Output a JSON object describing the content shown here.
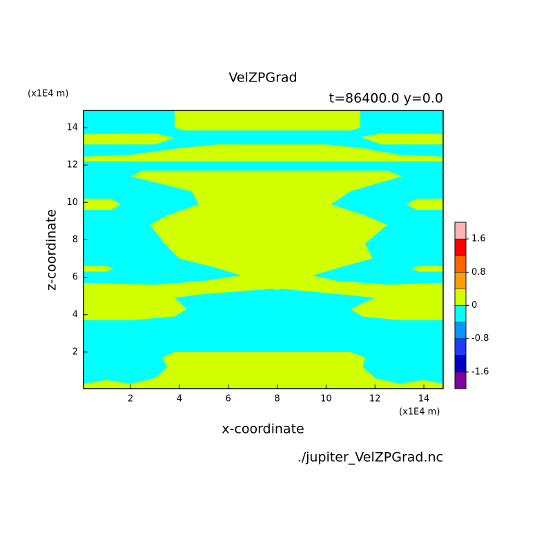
{
  "chart_data": {
    "type": "contour",
    "title": "VelZPGrad",
    "subtitle": "t=86400.0 y=0.0",
    "x_label": "x-coordinate",
    "y_label": "z-coordinate",
    "x_unit": "(x1E4 m)",
    "y_unit": "(x1E4 m)",
    "source": "./jupiter_VelZPGrad.nc",
    "xlim": [
      0.08,
      14.79
    ],
    "ylim": [
      0.04,
      14.92
    ],
    "xticks": [
      2,
      4,
      6,
      8,
      10,
      12,
      14
    ],
    "yticks": [
      2,
      4,
      6,
      8,
      10,
      12,
      14
    ],
    "levels": [
      -1.6,
      -1.2,
      -0.8,
      -0.4,
      0,
      0.4,
      0.8,
      1.2,
      1.6
    ],
    "colors": [
      "#8200a0",
      "#0000c8",
      "#1e3cff",
      "#0096ff",
      "#00ffff",
      "#d2ff00",
      "#ffa000",
      "#ff6400",
      "#ff0000",
      "#ffb4b4"
    ],
    "colorbar_ticks": [
      -1.6,
      -0.8,
      0,
      0.8,
      1.6
    ],
    "background_level": -0.4,
    "regions": [
      {
        "level": 0,
        "x": [
          3.8,
          3.8,
          4.2,
          11.0,
          11.4,
          11.4
        ],
        "y": [
          14.92,
          14.0,
          13.85,
          13.85,
          14.0,
          14.92
        ]
      },
      {
        "level": 0,
        "x": [
          0.08,
          3.0,
          3.8,
          3.0,
          0.08
        ],
        "y": [
          13.65,
          13.7,
          13.45,
          13.1,
          13.1
        ]
      },
      {
        "level": 0,
        "x": [
          14.79,
          12.3,
          11.4,
          12.3,
          14.79
        ],
        "y": [
          13.65,
          13.7,
          13.5,
          13.1,
          13.1
        ]
      },
      {
        "level": 0,
        "x": [
          0.08,
          2.0,
          4.0,
          5.5,
          10.0,
          11.5,
          13.0,
          14.79,
          14.79,
          0.08
        ],
        "y": [
          12.45,
          12.55,
          12.9,
          13.1,
          13.1,
          12.9,
          12.55,
          12.45,
          12.2,
          12.2
        ]
      },
      {
        "level": 0,
        "x": [
          2.0,
          2.5,
          12.5,
          13.1,
          11.0,
          10.2,
          11.6,
          12.5,
          11.6,
          11.9,
          10.5,
          9.2,
          8.0,
          6.8,
          5.5,
          4.0,
          3.4,
          2.8,
          3.5,
          4.8,
          4.5
        ],
        "y": [
          11.4,
          11.7,
          11.7,
          11.4,
          10.6,
          9.9,
          9.3,
          8.8,
          7.8,
          7.0,
          6.5,
          6.0,
          5.3,
          6.0,
          6.5,
          7.0,
          7.8,
          8.8,
          9.3,
          9.9,
          10.6
        ]
      },
      {
        "level": 0,
        "x": [
          0.08,
          1.2,
          1.6,
          1.2,
          0.08
        ],
        "y": [
          10.2,
          10.2,
          9.9,
          9.6,
          9.6
        ]
      },
      {
        "level": 0,
        "x": [
          14.79,
          13.7,
          13.3,
          13.7,
          14.79
        ],
        "y": [
          10.2,
          10.2,
          9.9,
          9.6,
          9.6
        ]
      },
      {
        "level": 0,
        "x": [
          0.08,
          1.0,
          1.3,
          1.0,
          0.08
        ],
        "y": [
          6.6,
          6.6,
          6.45,
          6.3,
          6.3
        ]
      },
      {
        "level": 0,
        "x": [
          14.79,
          13.8,
          13.5,
          13.8,
          14.79
        ],
        "y": [
          6.6,
          6.6,
          6.45,
          6.3,
          6.3
        ]
      },
      {
        "level": 0,
        "x": [
          0.08,
          3.0,
          5.0,
          7.0,
          9.0,
          10.5,
          12.5,
          14.79,
          14.79,
          13.0,
          11.5,
          11.0,
          12.0,
          10.5,
          8.0,
          5.0,
          3.8,
          4.3,
          3.8,
          2.0,
          0.08
        ],
        "y": [
          5.7,
          5.6,
          5.8,
          6.2,
          6.2,
          5.8,
          5.6,
          5.7,
          3.7,
          3.7,
          3.9,
          4.3,
          4.9,
          5.1,
          5.4,
          5.1,
          4.9,
          4.3,
          3.9,
          3.7,
          3.7
        ]
      },
      {
        "level": 0,
        "x": [
          0.08,
          0.08,
          1.0,
          2.0,
          3.0,
          3.5,
          3.3,
          3.8,
          11.0,
          11.6,
          11.5,
          12.0,
          13.0,
          14.0,
          14.79,
          14.79
        ],
        "y": [
          0.04,
          0.3,
          0.5,
          0.3,
          0.6,
          1.2,
          1.7,
          2.0,
          2.0,
          1.7,
          1.2,
          0.6,
          0.3,
          0.5,
          0.3,
          0.04
        ]
      }
    ]
  }
}
